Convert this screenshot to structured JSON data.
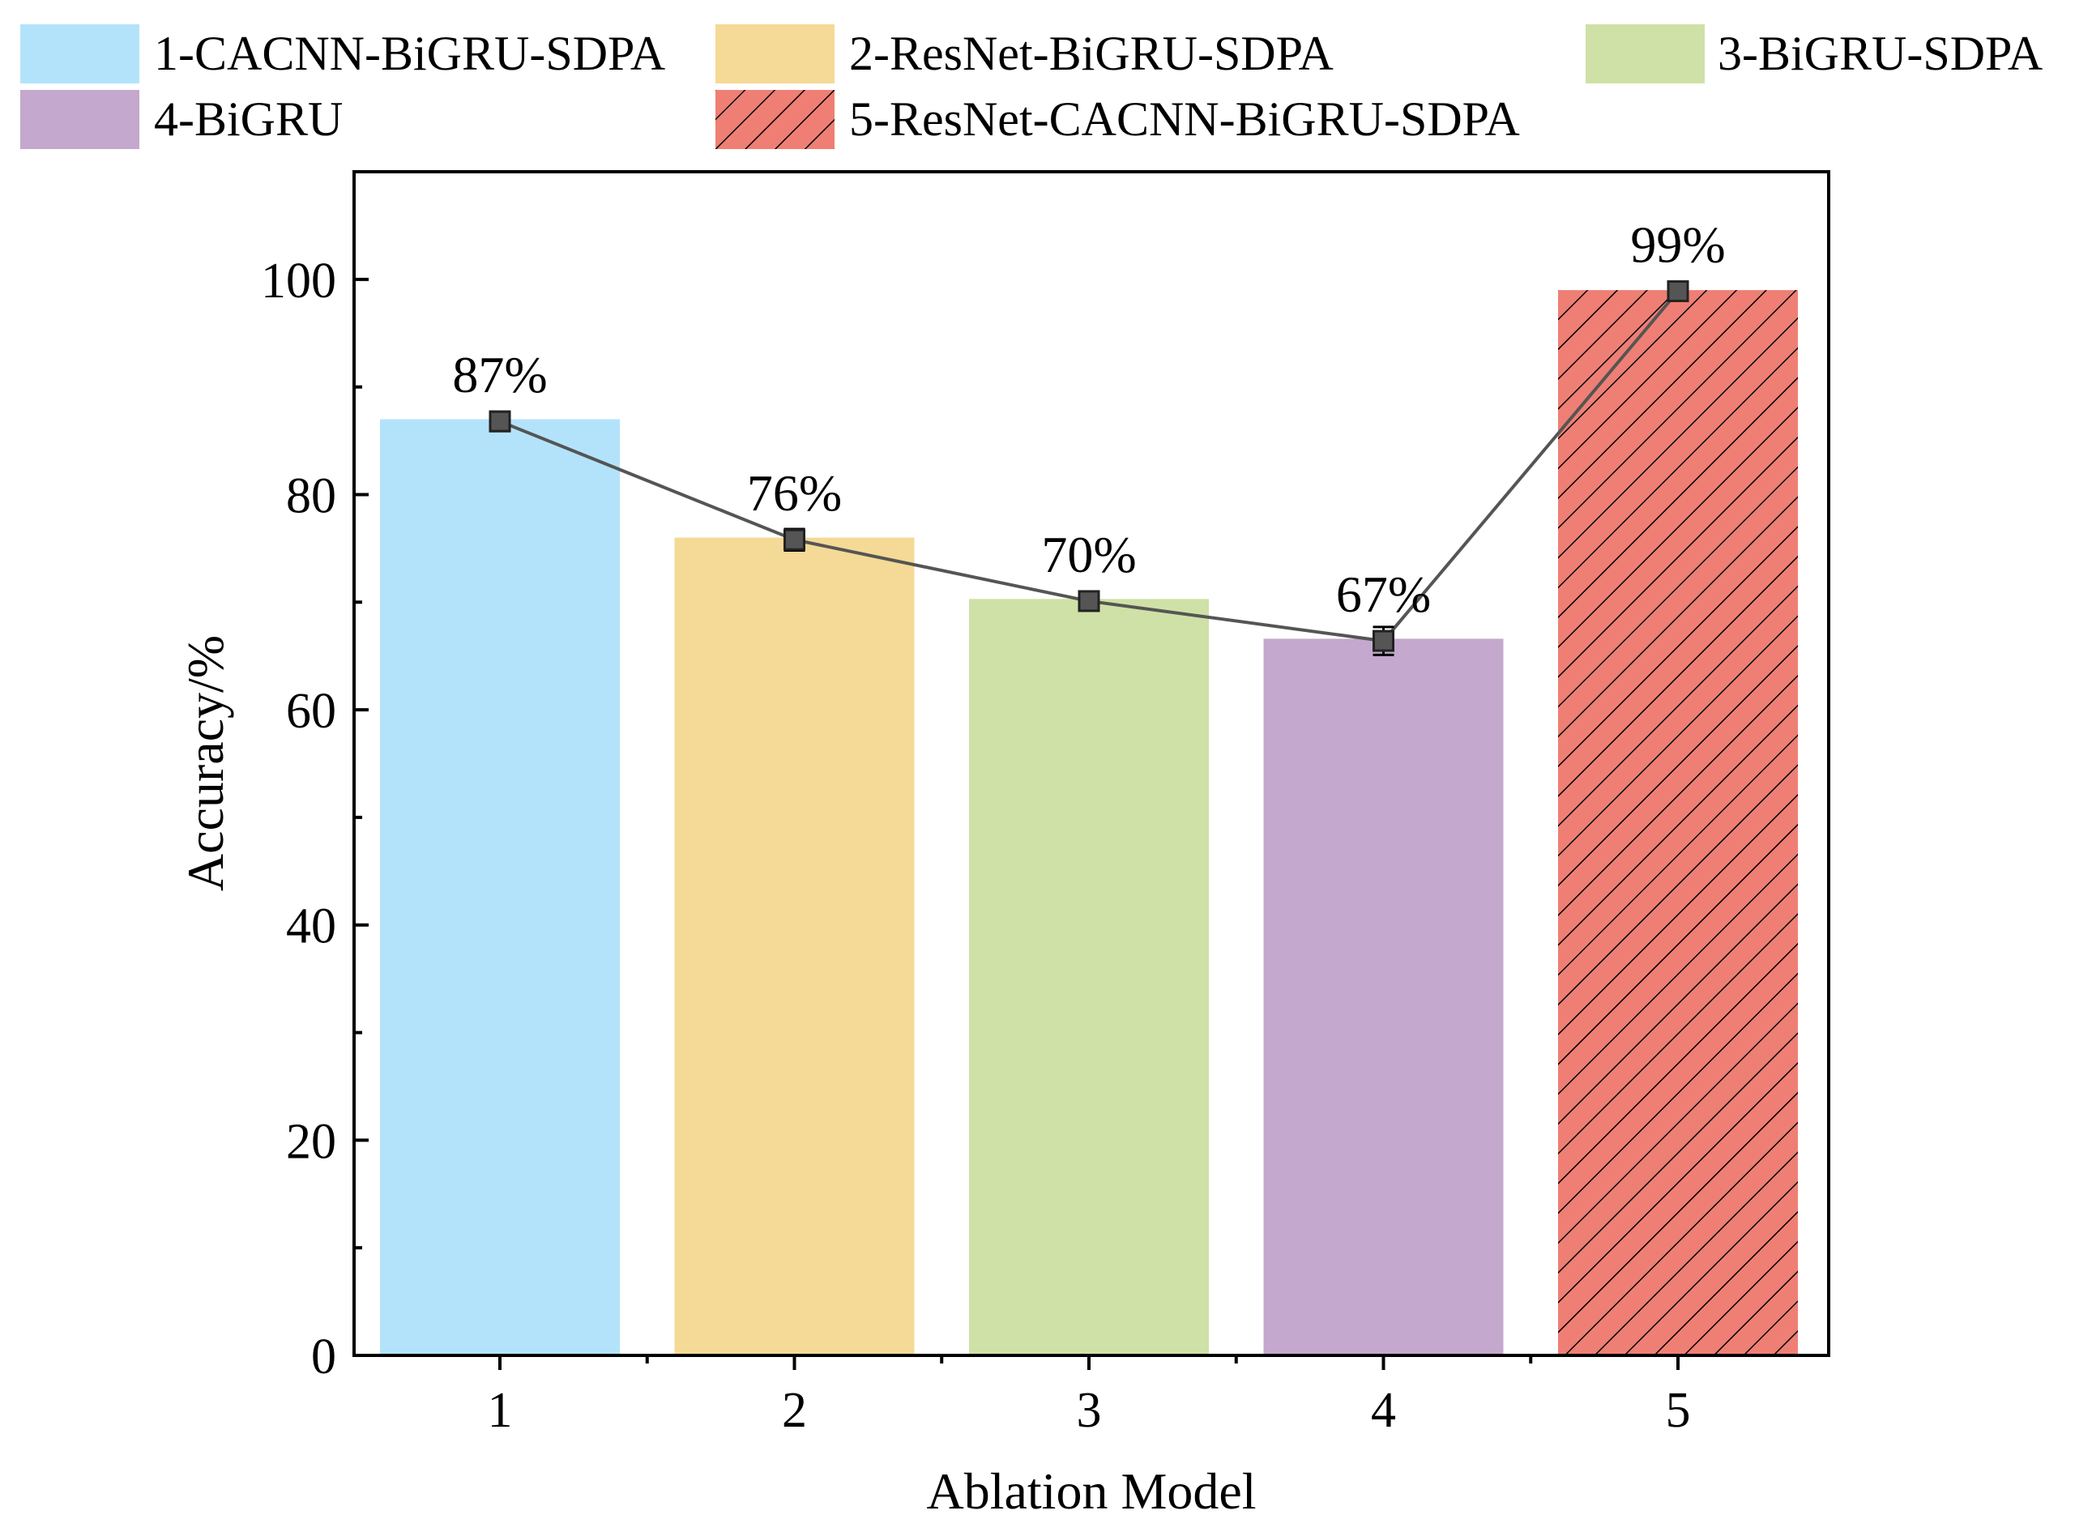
{
  "chart_data": {
    "type": "bar",
    "title": "",
    "xlabel": "Ablation Model",
    "ylabel": "Accuracy/%",
    "categories": [
      "1",
      "2",
      "3",
      "4",
      "5"
    ],
    "values": [
      87,
      76,
      70.3,
      66.6,
      99
    ],
    "data_labels": [
      "87%",
      "76%",
      "70%",
      "67%",
      "99%"
    ],
    "overlay_line": {
      "values": [
        86.8,
        75.8,
        70.1,
        66.4,
        98.9
      ],
      "error": [
        0.9,
        1.0,
        0.8,
        1.3,
        0.7
      ],
      "color": "#555555"
    },
    "ylim": [
      0,
      110
    ],
    "yticks": [
      0,
      20,
      40,
      60,
      80,
      100
    ],
    "y_minor_step": 10,
    "grid": false,
    "legend_position": "top",
    "series": [
      {
        "name": "1-CACNN-BiGRU-SDPA",
        "color": "#b3e3fb",
        "hatch": false
      },
      {
        "name": "2-ResNet-BiGRU-SDPA",
        "color": "#f5d996",
        "hatch": false
      },
      {
        "name": "3-BiGRU-SDPA",
        "color": "#cfe1a6",
        "hatch": false
      },
      {
        "name": "4-BiGRU",
        "color": "#c4a8cd",
        "hatch": false
      },
      {
        "name": "5-ResNet-CACNN-BiGRU-SDPA",
        "color": "#ef7f74",
        "hatch": true
      }
    ]
  }
}
